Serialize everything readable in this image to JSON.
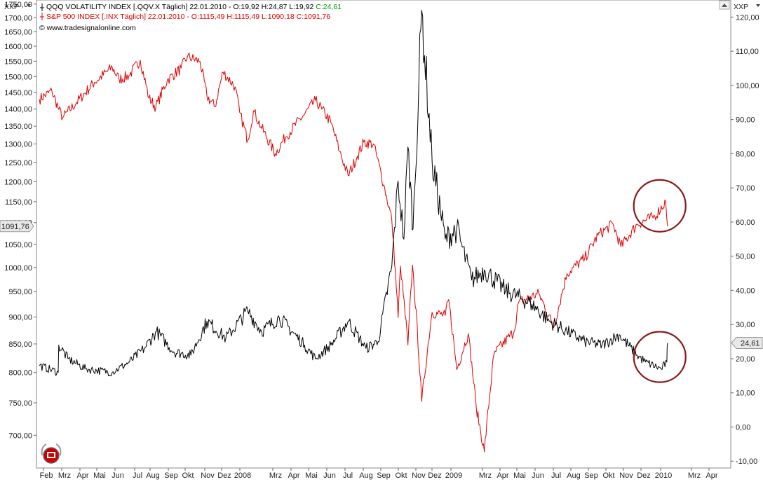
{
  "chart_data": {
    "type": "line",
    "header": {
      "left_menu": "XXP",
      "right_menu": "XXP",
      "series_vix_text": "QQQ VOLATILITY INDEX [.QQV.X  Täglich] 22.01.2010 - O:19,92 H:24,87 L:19,92 ",
      "series_vix_close": "C:24,61",
      "series_spx_text": "S&P 500 INDEX [.INX  Täglich] 22.01.2010 - O:1115,49 H:1115,49 L:1090,18 C:1091,76",
      "copyright": "© www.tradesignalonline.com"
    },
    "left_axis": {
      "scale": "log",
      "ylim": [
        655,
        1760
      ],
      "ticks": [
        "700,00",
        "750,00",
        "800,00",
        "850,00",
        "900,00",
        "950,00",
        "1000,00",
        "1050,00",
        "1100,00",
        "1150,00",
        "1200,00",
        "1250,00",
        "1300,00",
        "1350,00",
        "1400,00",
        "1450,00",
        "1500,00",
        "1550,00",
        "1600,00",
        "1650,00",
        "1700,00",
        "1750,00"
      ],
      "last_value_label": "1091,76"
    },
    "right_axis": {
      "scale": "linear",
      "ylim": [
        -12,
        125
      ],
      "ticks": [
        "-10,00",
        "0,00",
        "10,00",
        "20,00",
        "30,00",
        "40,00",
        "50,00",
        "60,00",
        "70,00",
        "80,00",
        "90,00",
        "100,00",
        "110,00",
        "120,00"
      ],
      "last_value_label": "24,61"
    },
    "x_axis": {
      "ticks": [
        "Feb",
        "Mrz",
        "Apr",
        "Mai",
        "Jun",
        "Jul",
        "Aug",
        "Sep",
        "Okt",
        "Nov",
        "Dez",
        "2008",
        "Mrz",
        "Apr",
        "Mai",
        "Jun",
        "Jul",
        "Aug",
        "Sep",
        "Okt",
        "Nov",
        "Dez",
        "2009",
        "Mrz",
        "Apr",
        "Mai",
        "Jun",
        "Jul",
        "Aug",
        "Sep",
        "Okt",
        "Nov",
        "Dez",
        "2010",
        "Mrz",
        "Apr"
      ]
    },
    "series": [
      {
        "name": "S&P 500 INDEX",
        "axis": "left",
        "color": "#e00000",
        "points": [
          [
            "2007-01-24",
            1430
          ],
          [
            "2007-02-15",
            1455
          ],
          [
            "2007-02-27",
            1399
          ],
          [
            "2007-03-06",
            1375
          ],
          [
            "2007-03-30",
            1420
          ],
          [
            "2007-04-30",
            1482
          ],
          [
            "2007-05-31",
            1530
          ],
          [
            "2007-06-12",
            1492
          ],
          [
            "2007-06-29",
            1503
          ],
          [
            "2007-07-19",
            1553
          ],
          [
            "2007-08-03",
            1433
          ],
          [
            "2007-08-15",
            1406
          ],
          [
            "2007-09-04",
            1489
          ],
          [
            "2007-09-28",
            1527
          ],
          [
            "2007-10-09",
            1565
          ],
          [
            "2007-10-31",
            1549
          ],
          [
            "2007-11-12",
            1439
          ],
          [
            "2007-11-26",
            1407
          ],
          [
            "2007-12-10",
            1515
          ],
          [
            "2007-12-31",
            1468
          ],
          [
            "2008-01-08",
            1390
          ],
          [
            "2008-01-22",
            1310
          ],
          [
            "2008-02-01",
            1395
          ],
          [
            "2008-02-14",
            1349
          ],
          [
            "2008-03-10",
            1273
          ],
          [
            "2008-03-28",
            1320
          ],
          [
            "2008-04-30",
            1385
          ],
          [
            "2008-05-19",
            1426
          ],
          [
            "2008-05-30",
            1400
          ],
          [
            "2008-06-15",
            1360
          ],
          [
            "2008-06-30",
            1280
          ],
          [
            "2008-07-15",
            1215
          ],
          [
            "2008-07-31",
            1267
          ],
          [
            "2008-08-11",
            1305
          ],
          [
            "2008-08-28",
            1300
          ],
          [
            "2008-09-15",
            1192
          ],
          [
            "2008-09-29",
            1106
          ],
          [
            "2008-10-10",
            899
          ],
          [
            "2008-10-14",
            1003
          ],
          [
            "2008-10-27",
            848
          ],
          [
            "2008-11-04",
            1005
          ],
          [
            "2008-11-20",
            752
          ],
          [
            "2008-12-08",
            909
          ],
          [
            "2008-12-31",
            903
          ],
          [
            "2009-01-06",
            934
          ],
          [
            "2009-01-20",
            805
          ],
          [
            "2009-02-09",
            869
          ],
          [
            "2009-02-23",
            743
          ],
          [
            "2009-03-09",
            676
          ],
          [
            "2009-03-26",
            832
          ],
          [
            "2009-04-30",
            873
          ],
          [
            "2009-05-08",
            929
          ],
          [
            "2009-06-12",
            946
          ],
          [
            "2009-07-08",
            880
          ],
          [
            "2009-07-31",
            987
          ],
          [
            "2009-08-31",
            1020
          ],
          [
            "2009-09-23",
            1071
          ],
          [
            "2009-10-19",
            1097
          ],
          [
            "2009-11-02",
            1045
          ],
          [
            "2009-11-30",
            1096
          ],
          [
            "2009-12-31",
            1115
          ],
          [
            "2010-01-19",
            1150
          ],
          [
            "2010-01-22",
            1091.76
          ]
        ]
      },
      {
        "name": "QQQ VOLATILITY INDEX",
        "axis": "right",
        "color": "#000000",
        "points": [
          [
            "2007-01-24",
            18
          ],
          [
            "2007-02-26",
            16
          ],
          [
            "2007-02-27",
            24
          ],
          [
            "2007-03-15",
            20
          ],
          [
            "2007-04-15",
            17
          ],
          [
            "2007-05-31",
            16
          ],
          [
            "2007-06-30",
            19
          ],
          [
            "2007-07-26",
            23
          ],
          [
            "2007-08-16",
            28
          ],
          [
            "2007-09-15",
            22
          ],
          [
            "2007-10-15",
            21
          ],
          [
            "2007-11-12",
            31
          ],
          [
            "2007-12-15",
            26
          ],
          [
            "2008-01-22",
            34
          ],
          [
            "2008-02-15",
            28
          ],
          [
            "2008-03-17",
            32
          ],
          [
            "2008-04-30",
            24
          ],
          [
            "2008-05-19",
            20
          ],
          [
            "2008-06-15",
            24
          ],
          [
            "2008-07-15",
            31
          ],
          [
            "2008-08-15",
            23
          ],
          [
            "2008-09-05",
            25
          ],
          [
            "2008-09-29",
            47
          ],
          [
            "2008-10-10",
            72
          ],
          [
            "2008-10-20",
            55
          ],
          [
            "2008-10-27",
            82
          ],
          [
            "2008-11-05",
            58
          ],
          [
            "2008-11-20",
            122
          ],
          [
            "2008-12-08",
            78
          ],
          [
            "2008-12-31",
            55
          ],
          [
            "2009-01-20",
            58
          ],
          [
            "2009-02-15",
            43
          ],
          [
            "2009-03-09",
            46
          ],
          [
            "2009-04-15",
            40
          ],
          [
            "2009-05-31",
            36
          ],
          [
            "2009-06-30",
            31
          ],
          [
            "2009-07-31",
            28
          ],
          [
            "2009-08-31",
            25
          ],
          [
            "2009-09-30",
            24
          ],
          [
            "2009-10-30",
            27
          ],
          [
            "2009-11-30",
            21
          ],
          [
            "2009-12-15",
            19
          ],
          [
            "2010-01-11",
            17
          ],
          [
            "2010-01-21",
            19
          ],
          [
            "2010-01-22",
            24.61
          ]
        ]
      }
    ],
    "annotations": [
      "circle around S&P 500 end of series",
      "circle around volatility index end of series"
    ]
  }
}
